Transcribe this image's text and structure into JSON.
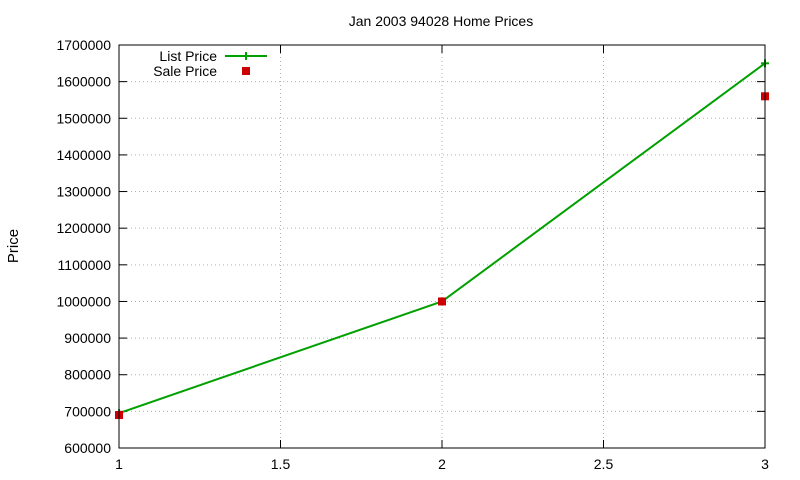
{
  "chart_data": {
    "type": "line",
    "title": "Jan 2003 94028 Home Prices",
    "xlabel": "",
    "ylabel": "Price",
    "xlim": [
      1,
      3
    ],
    "ylim": [
      600000,
      1700000
    ],
    "x_ticks": [
      "1",
      "1.5",
      "2",
      "2.5",
      "3"
    ],
    "y_ticks": [
      "600000",
      "700000",
      "800000",
      "900000",
      "1000000",
      "1100000",
      "1200000",
      "1300000",
      "1400000",
      "1500000",
      "1600000",
      "1700000"
    ],
    "grid": true,
    "legend_position": "top-left",
    "series": [
      {
        "name": "List Price",
        "style": "lines+points",
        "marker": "plus",
        "color": "#00a000",
        "x": [
          1,
          2,
          3
        ],
        "y": [
          695000,
          1000000,
          1650000
        ]
      },
      {
        "name": "Sale Price",
        "style": "points",
        "marker": "square",
        "color": "#cc0000",
        "x": [
          1,
          2,
          3
        ],
        "y": [
          690000,
          1000000,
          1560000
        ]
      }
    ]
  }
}
